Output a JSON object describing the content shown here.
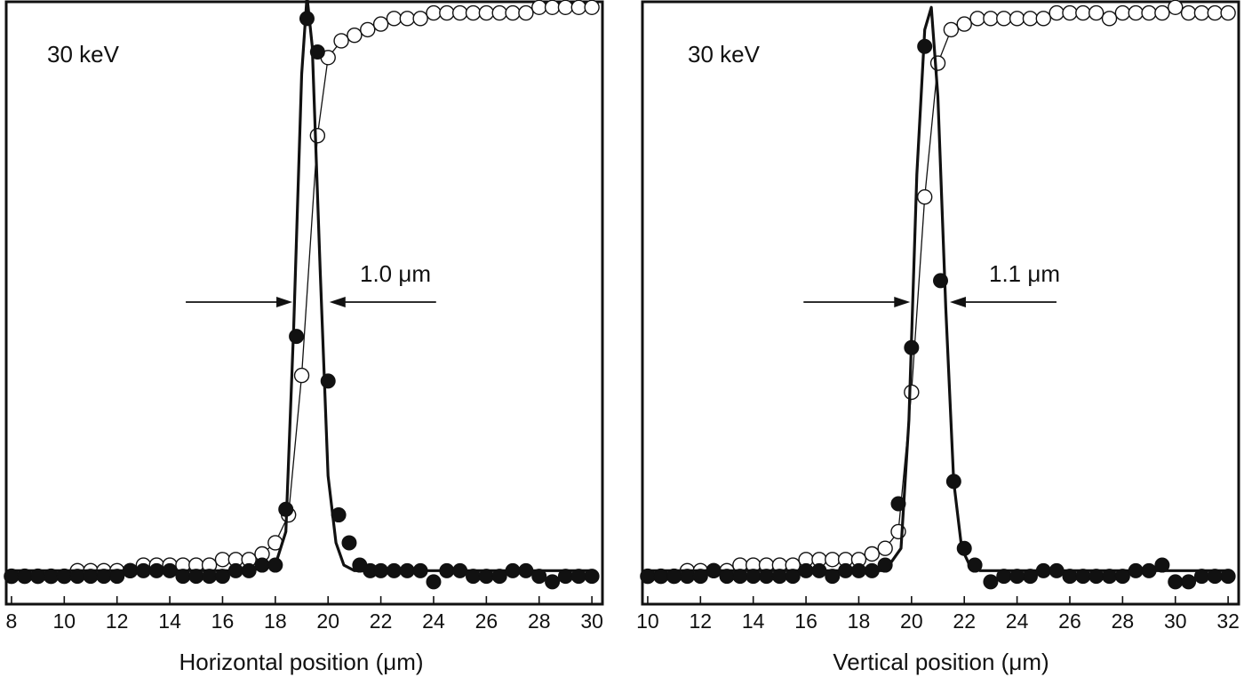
{
  "chart_data": [
    {
      "type": "scatter",
      "annotation_energy": "30 keV",
      "xlabel": "Horizontal position (μm)",
      "xlim": [
        7.8,
        30.4
      ],
      "ylim": [
        -0.05,
        1.03
      ],
      "xticks": [
        8,
        10,
        12,
        14,
        16,
        18,
        20,
        22,
        24,
        26,
        28,
        30
      ],
      "fwhm_label": "1.0 μm",
      "fwhm_range": [
        18.85,
        19.85
      ],
      "series": [
        {
          "style": "open-circles-thin-line",
          "x": [
            8.0,
            8.5,
            9.0,
            9.5,
            10.0,
            10.5,
            11.0,
            11.5,
            12.0,
            12.5,
            13.0,
            13.5,
            14.0,
            14.5,
            15.0,
            15.5,
            16.0,
            16.5,
            17.0,
            17.5,
            18.0,
            18.5,
            19.0,
            19.6,
            20.0,
            20.5,
            21.0,
            21.5,
            22.0,
            22.5,
            23.0,
            23.5,
            24.0,
            24.5,
            25.0,
            25.5,
            26.0,
            26.5,
            27.0,
            27.5,
            28.0,
            28.5,
            29.0,
            29.5,
            30.0
          ],
          "y": [
            0.0,
            0.0,
            0.0,
            0.0,
            0.0,
            0.01,
            0.01,
            0.01,
            0.01,
            0.01,
            0.02,
            0.02,
            0.02,
            0.02,
            0.02,
            0.02,
            0.03,
            0.03,
            0.03,
            0.04,
            0.06,
            0.11,
            0.36,
            0.79,
            0.93,
            0.96,
            0.97,
            0.98,
            0.99,
            1.0,
            1.0,
            1.0,
            1.01,
            1.01,
            1.01,
            1.01,
            1.01,
            1.01,
            1.01,
            1.01,
            1.02,
            1.02,
            1.02,
            1.02,
            1.02
          ]
        },
        {
          "style": "filled-circles",
          "x": [
            8.0,
            8.5,
            9.0,
            9.5,
            10.0,
            10.5,
            11.0,
            11.5,
            12.0,
            12.5,
            13.0,
            13.5,
            14.0,
            14.5,
            15.0,
            15.5,
            16.0,
            16.5,
            17.0,
            17.5,
            18.0,
            18.4,
            18.8,
            19.2,
            19.6,
            20.0,
            20.4,
            20.8,
            21.2,
            21.6,
            22.0,
            22.5,
            23.0,
            23.5,
            24.0,
            24.5,
            25.0,
            25.5,
            26.0,
            26.5,
            27.0,
            27.5,
            28.0,
            28.5,
            29.0,
            29.5,
            30.0
          ],
          "y": [
            0.0,
            0.0,
            0.0,
            0.0,
            0.0,
            0.0,
            0.0,
            0.0,
            0.0,
            0.01,
            0.01,
            0.01,
            0.01,
            0.0,
            0.0,
            0.0,
            0.0,
            0.01,
            0.01,
            0.02,
            0.02,
            0.12,
            0.43,
            1.0,
            0.94,
            0.35,
            0.11,
            0.06,
            0.02,
            0.01,
            0.01,
            0.01,
            0.01,
            0.01,
            -0.01,
            0.01,
            0.01,
            0.0,
            0.0,
            0.0,
            0.01,
            0.01,
            0.0,
            -0.01,
            0.0,
            0.0,
            0.0
          ]
        },
        {
          "style": "thick-line-gaussian-fit",
          "x": [
            8.0,
            12.0,
            15.0,
            17.0,
            18.0,
            18.4,
            18.7,
            19.0,
            19.2,
            19.4,
            19.7,
            20.0,
            20.3,
            20.6,
            21.0,
            22.0,
            26.0,
            30.0
          ],
          "y": [
            0.01,
            0.01,
            0.01,
            0.01,
            0.02,
            0.08,
            0.45,
            0.9,
            1.04,
            0.95,
            0.55,
            0.18,
            0.06,
            0.02,
            0.01,
            0.01,
            0.01,
            0.01
          ]
        }
      ]
    },
    {
      "type": "scatter",
      "annotation_energy": "30 keV",
      "xlabel": "Vertical position (μm)",
      "xlim": [
        9.8,
        32.4
      ],
      "ylim": [
        -0.05,
        1.03
      ],
      "xticks": [
        10,
        12,
        14,
        16,
        18,
        20,
        22,
        24,
        26,
        28,
        30,
        32
      ],
      "fwhm_label": "1.1 μm",
      "fwhm_range": [
        20.15,
        21.25
      ],
      "series": [
        {
          "style": "open-circles-thin-line",
          "x": [
            10.0,
            10.5,
            11.0,
            11.5,
            12.0,
            12.5,
            13.0,
            13.5,
            14.0,
            14.5,
            15.0,
            15.5,
            16.0,
            16.5,
            17.0,
            17.5,
            18.0,
            18.5,
            19.0,
            19.5,
            20.0,
            20.5,
            21.0,
            21.5,
            22.0,
            22.5,
            23.0,
            23.5,
            24.0,
            24.5,
            25.0,
            25.5,
            26.0,
            26.5,
            27.0,
            27.5,
            28.0,
            28.5,
            29.0,
            29.5,
            30.0,
            30.5,
            31.0,
            31.5,
            32.0
          ],
          "y": [
            0.0,
            0.0,
            0.0,
            0.01,
            0.01,
            0.01,
            0.01,
            0.02,
            0.02,
            0.02,
            0.02,
            0.02,
            0.03,
            0.03,
            0.03,
            0.03,
            0.03,
            0.04,
            0.05,
            0.08,
            0.33,
            0.68,
            0.92,
            0.98,
            0.99,
            1.0,
            1.0,
            1.0,
            1.0,
            1.0,
            1.0,
            1.01,
            1.01,
            1.01,
            1.01,
            1.0,
            1.01,
            1.01,
            1.01,
            1.01,
            1.02,
            1.01,
            1.01,
            1.01,
            1.01
          ]
        },
        {
          "style": "filled-circles",
          "x": [
            10.0,
            10.5,
            11.0,
            11.5,
            12.0,
            12.5,
            13.0,
            13.5,
            14.0,
            14.5,
            15.0,
            15.5,
            16.0,
            16.5,
            17.0,
            17.5,
            18.0,
            18.5,
            19.0,
            19.5,
            20.0,
            20.5,
            21.1,
            21.6,
            22.0,
            22.4,
            23.0,
            23.5,
            24.0,
            24.5,
            25.0,
            25.5,
            26.0,
            26.5,
            27.0,
            27.5,
            28.0,
            28.5,
            29.0,
            29.5,
            30.0,
            30.5,
            31.0,
            31.5,
            32.0
          ],
          "y": [
            0.0,
            0.0,
            0.0,
            0.0,
            0.0,
            0.01,
            0.0,
            0.0,
            0.0,
            0.0,
            0.0,
            0.0,
            0.01,
            0.01,
            0.0,
            0.01,
            0.01,
            0.01,
            0.02,
            0.13,
            0.41,
            0.95,
            0.53,
            0.17,
            0.05,
            0.02,
            -0.01,
            0.0,
            0.0,
            0.0,
            0.01,
            0.01,
            0.0,
            0.0,
            0.0,
            0.0,
            0.0,
            0.01,
            0.01,
            0.02,
            -0.01,
            -0.01,
            0.0,
            0.0,
            0.0
          ]
        },
        {
          "style": "thick-line-gaussian-fit",
          "x": [
            10.0,
            14.0,
            17.0,
            19.0,
            19.6,
            19.9,
            20.2,
            20.5,
            20.75,
            21.0,
            21.3,
            21.6,
            21.9,
            22.2,
            22.6,
            26.0,
            32.0
          ],
          "y": [
            0.01,
            0.01,
            0.01,
            0.01,
            0.05,
            0.28,
            0.72,
            0.98,
            1.02,
            0.86,
            0.48,
            0.17,
            0.05,
            0.02,
            0.01,
            0.01,
            0.01
          ]
        }
      ]
    }
  ]
}
